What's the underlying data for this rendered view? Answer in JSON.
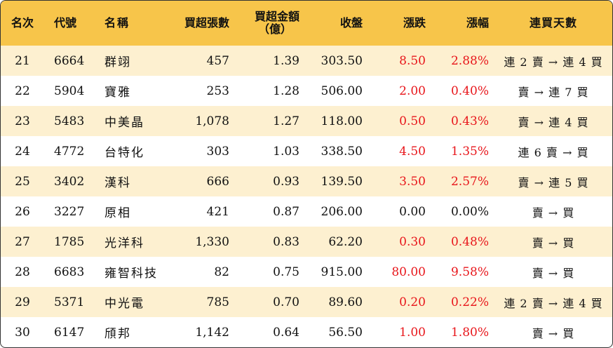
{
  "headers": {
    "rank": "名次",
    "code": "代號",
    "name": "名稱",
    "net_lots": "買超張數",
    "net_amount_line1": "買超金額",
    "net_amount_line2": "（億）",
    "close": "收盤",
    "change": "漲跌",
    "change_pct": "漲幅",
    "streak": "連買天數"
  },
  "colors": {
    "header_bg": "#f7c54a",
    "stripe_bg": "#fdf0d0",
    "up": "#e8161b",
    "flat": "#111111"
  },
  "rows": [
    {
      "rank": "21",
      "code": "6664",
      "name": "群翊",
      "net_lots": "457",
      "net_amount": "1.39",
      "close": "303.50",
      "change": "8.50",
      "change_pct": "2.88%",
      "streak": "連 2 賣 → 連 4 買",
      "dir": "up"
    },
    {
      "rank": "22",
      "code": "5904",
      "name": "寶雅",
      "net_lots": "253",
      "net_amount": "1.28",
      "close": "506.00",
      "change": "2.00",
      "change_pct": "0.40%",
      "streak": "賣 → 連 7 買",
      "dir": "up"
    },
    {
      "rank": "23",
      "code": "5483",
      "name": "中美晶",
      "net_lots": "1,078",
      "net_amount": "1.27",
      "close": "118.00",
      "change": "0.50",
      "change_pct": "0.43%",
      "streak": "賣 → 連 4 買",
      "dir": "up"
    },
    {
      "rank": "24",
      "code": "4772",
      "name": "台特化",
      "net_lots": "303",
      "net_amount": "1.03",
      "close": "338.50",
      "change": "4.50",
      "change_pct": "1.35%",
      "streak": "連 6 賣 → 買",
      "dir": "up"
    },
    {
      "rank": "25",
      "code": "3402",
      "name": "漢科",
      "net_lots": "666",
      "net_amount": "0.93",
      "close": "139.50",
      "change": "3.50",
      "change_pct": "2.57%",
      "streak": "賣 → 連 5 買",
      "dir": "up"
    },
    {
      "rank": "26",
      "code": "3227",
      "name": "原相",
      "net_lots": "421",
      "net_amount": "0.87",
      "close": "206.00",
      "change": "0.00",
      "change_pct": "0.00%",
      "streak": "賣 → 買",
      "dir": "flat"
    },
    {
      "rank": "27",
      "code": "1785",
      "name": "光洋科",
      "net_lots": "1,330",
      "net_amount": "0.83",
      "close": "62.20",
      "change": "0.30",
      "change_pct": "0.48%",
      "streak": "賣 → 買",
      "dir": "up"
    },
    {
      "rank": "28",
      "code": "6683",
      "name": "雍智科技",
      "net_lots": "82",
      "net_amount": "0.75",
      "close": "915.00",
      "change": "80.00",
      "change_pct": "9.58%",
      "streak": "賣 → 買",
      "dir": "up"
    },
    {
      "rank": "29",
      "code": "5371",
      "name": "中光電",
      "net_lots": "785",
      "net_amount": "0.70",
      "close": "89.60",
      "change": "0.20",
      "change_pct": "0.22%",
      "streak": "連 2 賣 → 連 4 買",
      "dir": "up"
    },
    {
      "rank": "30",
      "code": "6147",
      "name": "頎邦",
      "net_lots": "1,142",
      "net_amount": "0.64",
      "close": "56.50",
      "change": "1.00",
      "change_pct": "1.80%",
      "streak": "賣 → 買",
      "dir": "up"
    }
  ]
}
